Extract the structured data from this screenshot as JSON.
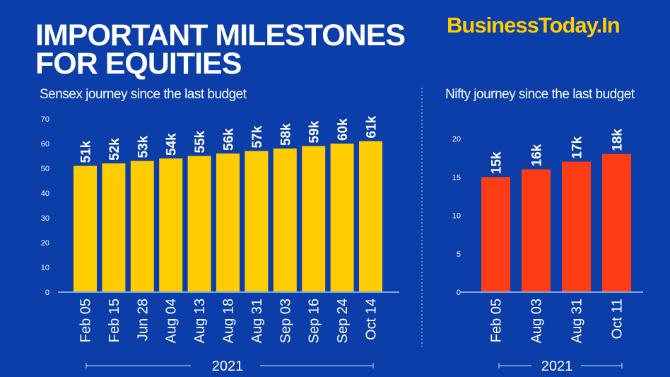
{
  "header": {
    "title_line1": "IMPORTANT MILESTONES",
    "title_line2": "FOR EQUITIES",
    "logo": "BusinessToday.In"
  },
  "colors": {
    "background": "#0b3ea8",
    "sensex_bar": "#ffcc00",
    "nifty_bar": "#ff3d14",
    "axis": "#7fa6e6"
  },
  "chart_data": [
    {
      "type": "bar",
      "title": "Sensex journey since the last budget",
      "xlabel": "2021",
      "ylabel": "",
      "categories": [
        "Feb 05",
        "Feb 15",
        "Jun 28",
        "Aug 04",
        "Aug 13",
        "Aug 18",
        "Aug 31",
        "Sep 03",
        "Sep 16",
        "Sep 24",
        "Oct 14"
      ],
      "values": [
        51,
        52,
        53,
        54,
        55,
        56,
        57,
        58,
        59,
        60,
        61
      ],
      "data_labels": [
        "51k",
        "52k",
        "53k",
        "54k",
        "55k",
        "56k",
        "57k",
        "58k",
        "59k",
        "60k",
        "61k"
      ],
      "ylim": [
        0,
        70
      ],
      "yticks": [
        0,
        10,
        20,
        30,
        40,
        50,
        60,
        70
      ],
      "grid": false
    },
    {
      "type": "bar",
      "title": "Nifty journey since the last budget",
      "xlabel": "2021",
      "ylabel": "",
      "categories": [
        "Feb 05",
        "Aug 03",
        "Aug 31",
        "Oct 11"
      ],
      "values": [
        15,
        16,
        17,
        18
      ],
      "data_labels": [
        "15k",
        "16k",
        "17k",
        "18k"
      ],
      "ylim": [
        0,
        20
      ],
      "yticks": [
        0,
        5,
        10,
        15,
        20
      ],
      "grid": false
    }
  ]
}
